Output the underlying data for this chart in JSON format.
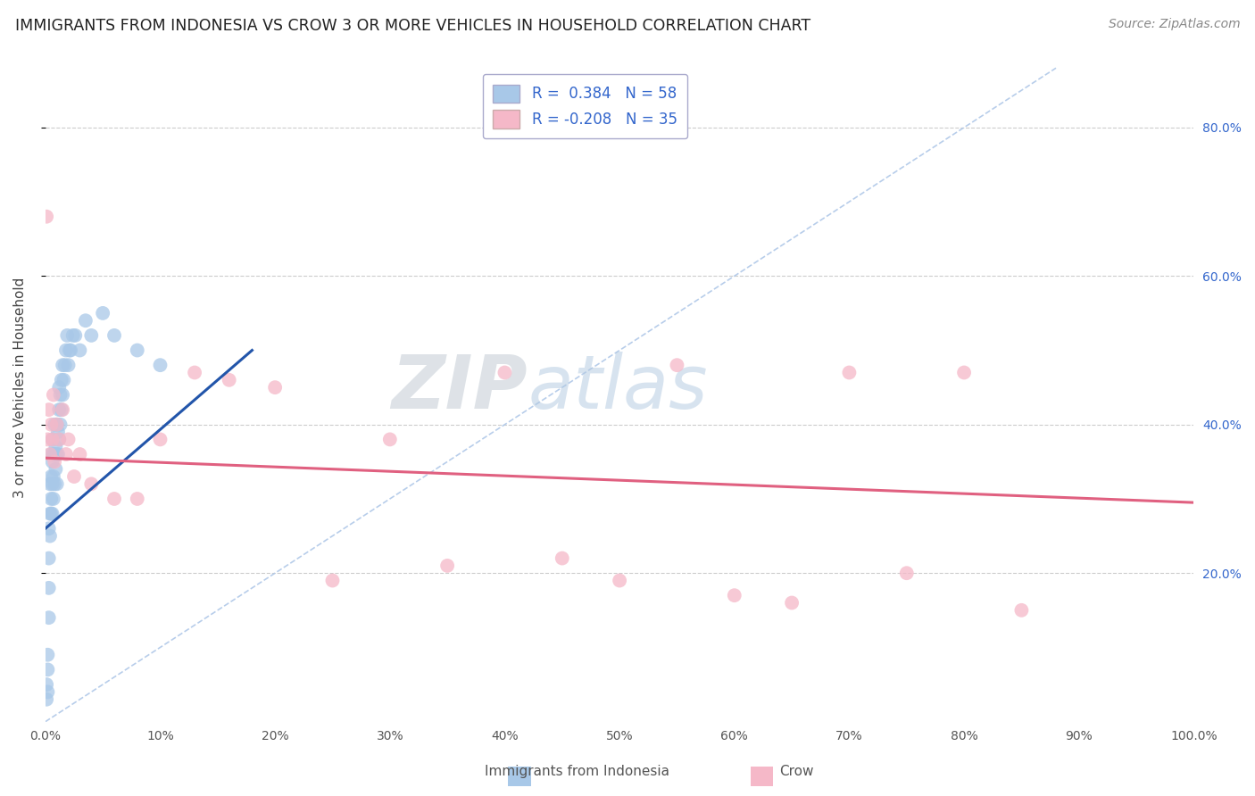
{
  "title": "IMMIGRANTS FROM INDONESIA VS CROW 3 OR MORE VEHICLES IN HOUSEHOLD CORRELATION CHART",
  "source": "Source: ZipAtlas.com",
  "ylabel": "3 or more Vehicles in Household",
  "xlim": [
    0.0,
    1.0
  ],
  "ylim": [
    0.0,
    0.9
  ],
  "xticks": [
    0.0,
    0.1,
    0.2,
    0.3,
    0.4,
    0.5,
    0.6,
    0.7,
    0.8,
    0.9,
    1.0
  ],
  "xtick_labels": [
    "0.0%",
    "10%",
    "20%",
    "30%",
    "40%",
    "50%",
    "60%",
    "70%",
    "80%",
    "90%",
    "100.0%"
  ],
  "yticks_right": [
    0.2,
    0.4,
    0.6,
    0.8
  ],
  "ytick_right_labels": [
    "20.0%",
    "40.0%",
    "60.0%",
    "80.0%"
  ],
  "blue_R": 0.384,
  "blue_N": 58,
  "pink_R": -0.208,
  "pink_N": 35,
  "blue_color": "#a8c8e8",
  "pink_color": "#f5b8c8",
  "blue_line_color": "#2255aa",
  "pink_line_color": "#e06080",
  "ref_line_color": "#b0c8e8",
  "watermark_color": "#ccd8e8",
  "legend_text_color": "#3366cc",
  "blue_scatter_x": [
    0.001,
    0.001,
    0.002,
    0.002,
    0.002,
    0.003,
    0.003,
    0.003,
    0.003,
    0.004,
    0.004,
    0.004,
    0.005,
    0.005,
    0.005,
    0.005,
    0.006,
    0.006,
    0.006,
    0.006,
    0.007,
    0.007,
    0.007,
    0.008,
    0.008,
    0.008,
    0.009,
    0.009,
    0.01,
    0.01,
    0.01,
    0.011,
    0.011,
    0.012,
    0.012,
    0.012,
    0.013,
    0.013,
    0.014,
    0.014,
    0.015,
    0.015,
    0.016,
    0.017,
    0.018,
    0.019,
    0.02,
    0.021,
    0.022,
    0.024,
    0.026,
    0.03,
    0.035,
    0.04,
    0.05,
    0.06,
    0.08,
    0.1
  ],
  "blue_scatter_y": [
    0.05,
    0.03,
    0.07,
    0.04,
    0.09,
    0.14,
    0.18,
    0.22,
    0.26,
    0.25,
    0.28,
    0.32,
    0.28,
    0.3,
    0.33,
    0.36,
    0.28,
    0.32,
    0.35,
    0.38,
    0.3,
    0.33,
    0.36,
    0.32,
    0.36,
    0.4,
    0.34,
    0.37,
    0.32,
    0.36,
    0.4,
    0.36,
    0.39,
    0.38,
    0.42,
    0.45,
    0.4,
    0.44,
    0.42,
    0.46,
    0.44,
    0.48,
    0.46,
    0.48,
    0.5,
    0.52,
    0.48,
    0.5,
    0.5,
    0.52,
    0.52,
    0.5,
    0.54,
    0.52,
    0.55,
    0.52,
    0.5,
    0.48
  ],
  "pink_scatter_x": [
    0.001,
    0.002,
    0.003,
    0.004,
    0.005,
    0.006,
    0.007,
    0.008,
    0.01,
    0.012,
    0.015,
    0.018,
    0.02,
    0.025,
    0.03,
    0.04,
    0.06,
    0.08,
    0.1,
    0.13,
    0.16,
    0.2,
    0.25,
    0.3,
    0.35,
    0.4,
    0.45,
    0.5,
    0.55,
    0.6,
    0.65,
    0.7,
    0.75,
    0.8,
    0.85
  ],
  "pink_scatter_y": [
    0.68,
    0.38,
    0.42,
    0.36,
    0.4,
    0.38,
    0.44,
    0.35,
    0.4,
    0.38,
    0.42,
    0.36,
    0.38,
    0.33,
    0.36,
    0.32,
    0.3,
    0.3,
    0.38,
    0.47,
    0.46,
    0.45,
    0.19,
    0.38,
    0.21,
    0.47,
    0.22,
    0.19,
    0.48,
    0.17,
    0.16,
    0.47,
    0.2,
    0.47,
    0.15
  ],
  "blue_trendline_x": [
    0.0,
    0.18
  ],
  "blue_trendline_y": [
    0.26,
    0.5
  ],
  "pink_trendline_x": [
    0.0,
    1.0
  ],
  "pink_trendline_y": [
    0.355,
    0.295
  ],
  "ref_line_x": [
    0.0,
    0.88
  ],
  "ref_line_y": [
    0.0,
    0.88
  ]
}
